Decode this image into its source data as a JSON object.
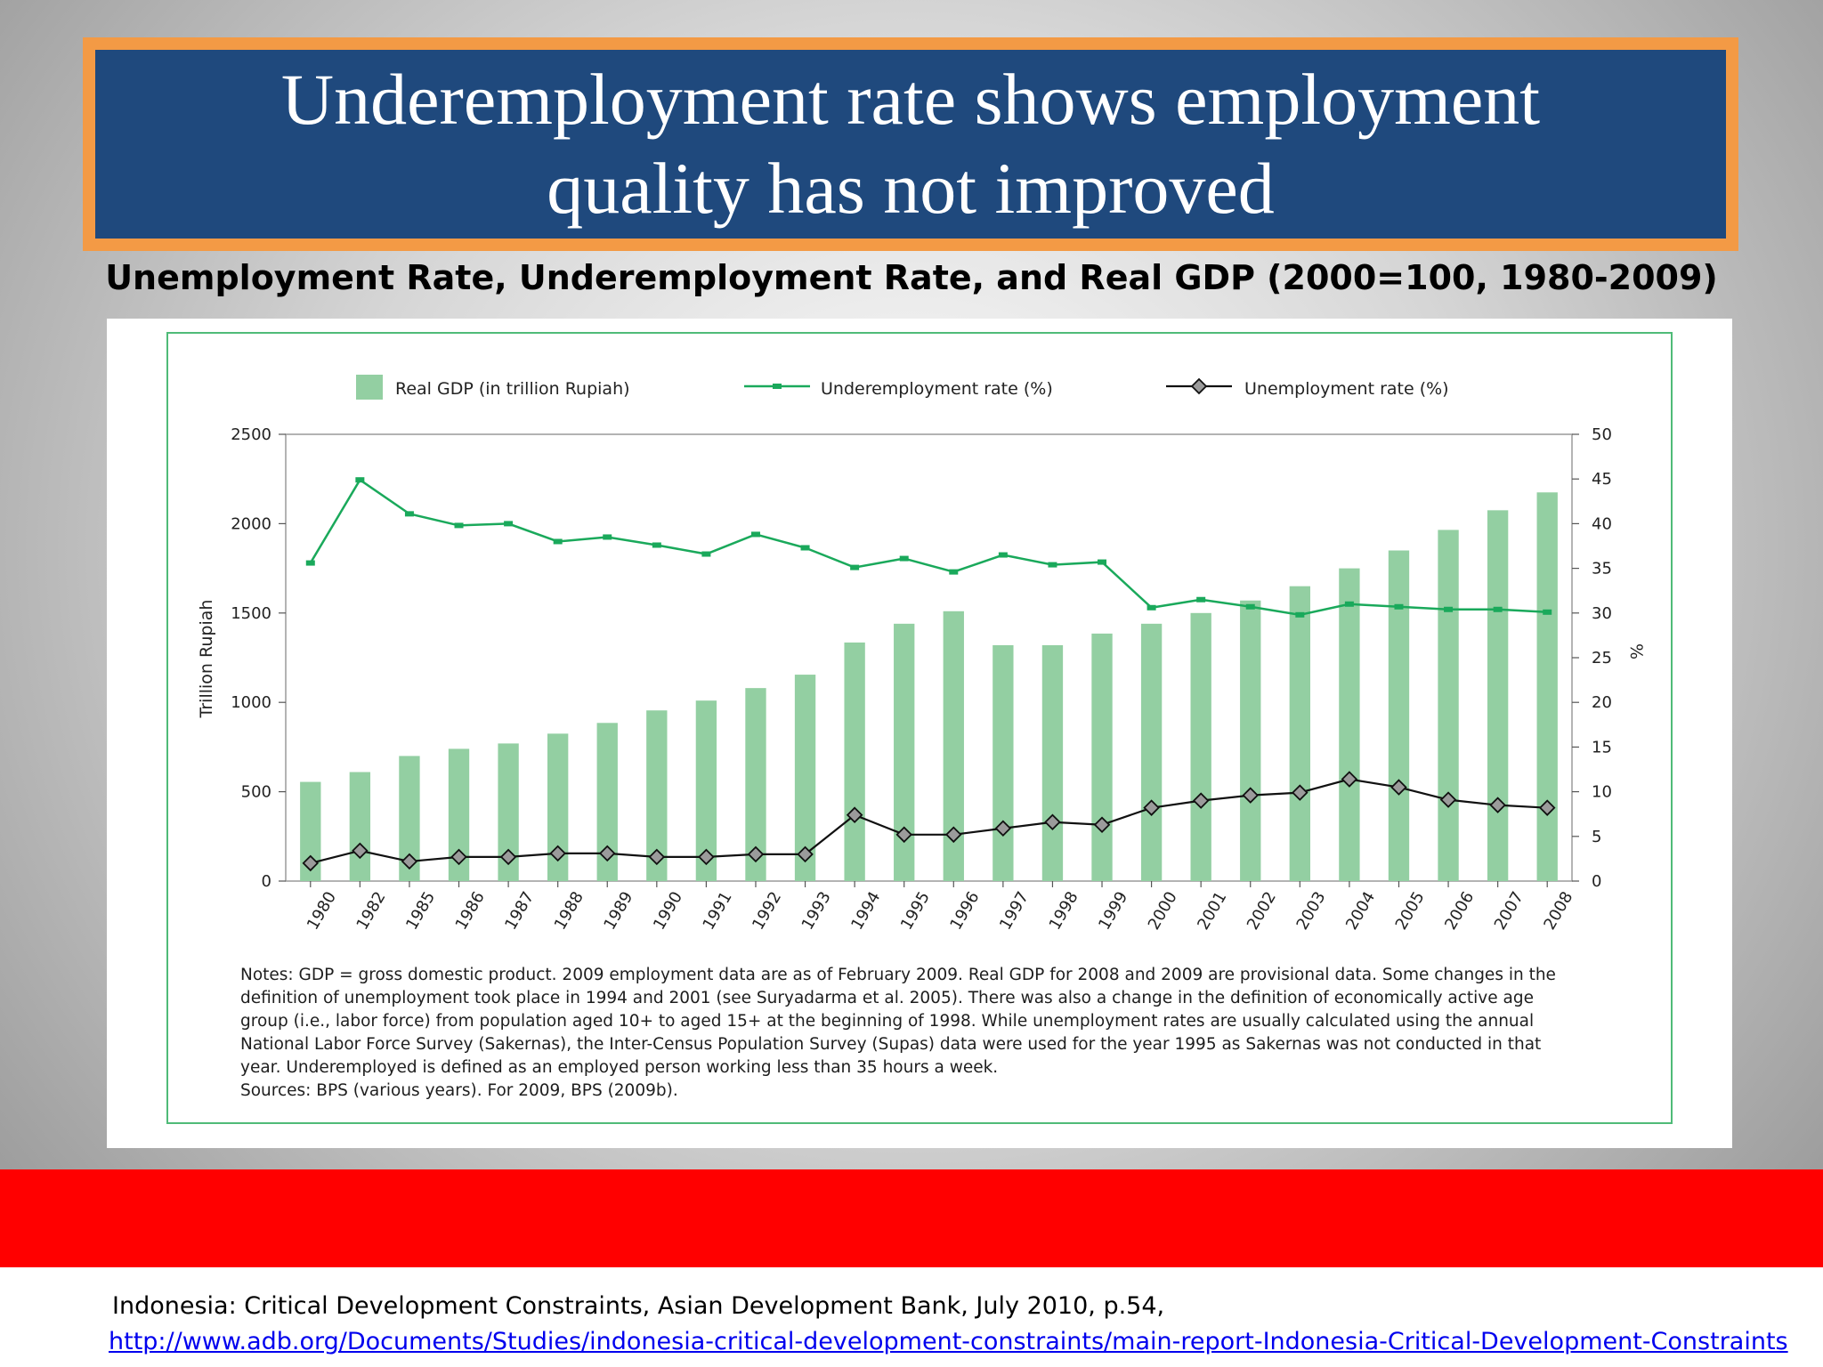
{
  "slide": {
    "title_lines": [
      "Underemployment rate shows employment",
      "quality has not improved"
    ],
    "subtitle": "Unemployment Rate, Underemployment Rate, and Real GDP (2000=100, 1980-2009)",
    "source_text": "Indonesia: Critical Development Constraints, Asian Development Bank, July 2010, p.54,",
    "source_link": "http://www.adb.org/Documents/Studies/indonesia-critical-development-constraints/main-report-Indonesia-Critical-Development-Constraints"
  },
  "notes_lines": [
    "Notes: GDP = gross domestic product. 2009 employment data are as of February 2009. Real GDP for 2008 and 2009 are provisional data. Some changes in the",
    "definition of unemployment took place in 1994 and 2001 (see Suryadarma et al. 2005). There was also a change in the definition of economically active age",
    "group (i.e., labor force) from population aged 10+ to aged 15+ at the beginning of 1998. While unemployment rates are usually calculated using the annual",
    "National Labor Force Survey (Sakernas), the Inter-Census Population Survey (Supas) data were used for the year 1995 as Sakernas was not conducted in that",
    "year. Underemployed is defined as an employed person working less than 35 hours a week.",
    "Sources: BPS (various years). For 2009, BPS (2009b)."
  ],
  "colors": {
    "bar": "#93cfa2",
    "underemployment_line": "#1aa95b",
    "unemployment_marker": "#9b9b9b",
    "frame": "#4fbb78"
  },
  "chart_data": {
    "type": "bar",
    "categories": [
      "1980",
      "1982",
      "1985",
      "1986",
      "1987",
      "1988",
      "1989",
      "1990",
      "1991",
      "1992",
      "1993",
      "1994",
      "1995",
      "1996",
      "1997",
      "1998",
      "1999",
      "2000",
      "2001",
      "2002",
      "2003",
      "2004",
      "2005",
      "2006",
      "2007",
      "2008"
    ],
    "series": [
      {
        "name": "Real GDP (in trillion Rupiah)",
        "type": "bar",
        "axis": "left",
        "values": [
          555,
          610,
          700,
          740,
          770,
          825,
          885,
          955,
          1010,
          1080,
          1155,
          1335,
          1440,
          1510,
          1320,
          1320,
          1385,
          1440,
          1500,
          1570,
          1650,
          1750,
          1850,
          1965,
          2075,
          2175
        ]
      },
      {
        "name": "Underemployment rate (%)",
        "type": "line",
        "axis": "right",
        "values": [
          35.6,
          44.9,
          41.1,
          39.8,
          40.0,
          38.0,
          38.5,
          37.6,
          36.6,
          38.8,
          37.3,
          35.1,
          36.1,
          34.6,
          36.5,
          35.4,
          35.7,
          30.6,
          31.5,
          30.7,
          29.8,
          31.0,
          30.7,
          30.4,
          30.4,
          30.1
        ]
      },
      {
        "name": "Unemployment rate (%)",
        "type": "line",
        "axis": "right",
        "values": [
          2.0,
          3.4,
          2.2,
          2.7,
          2.7,
          3.1,
          3.1,
          2.7,
          2.7,
          3.0,
          3.0,
          7.4,
          5.2,
          5.2,
          5.9,
          6.6,
          6.3,
          8.2,
          9.0,
          9.6,
          9.9,
          11.4,
          10.5,
          9.1,
          8.5,
          8.2
        ]
      }
    ],
    "ylabel_left": "Trillion Rupiah",
    "ylabel_right": "%",
    "ylim_left": [
      0,
      2500
    ],
    "ylim_right": [
      0,
      50
    ],
    "yticks_left": [
      0,
      500,
      1000,
      1500,
      2000,
      2500
    ],
    "yticks_right": [
      0,
      5,
      10,
      15,
      20,
      25,
      30,
      35,
      40,
      45,
      50
    ],
    "legend_position": "top",
    "grid": false
  }
}
